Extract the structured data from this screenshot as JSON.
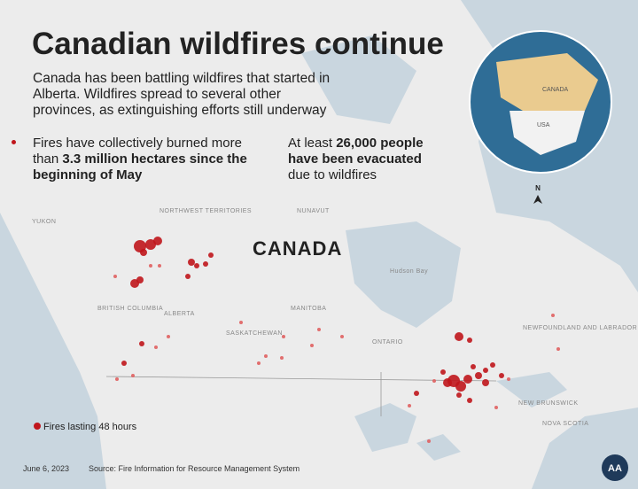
{
  "header": {
    "title": "Canadian wildfires continue",
    "subtitle": "Canada has been battling wildfires that started in Alberta. Wildfires spread to several other provinces, as extinguishing efforts still underway"
  },
  "facts": [
    {
      "parts": [
        "Fires have collectively burned more than ",
        "3.3 million hectares since the beginning of May"
      ]
    },
    {
      "parts": [
        "At least ",
        "26,000 people have been evacuated",
        " due to wildfires"
      ]
    }
  ],
  "map": {
    "country_label": "CANADA",
    "regions": [
      "YUKON",
      "NORTHWEST TERRITORIES",
      "NUNAVUT",
      "BRITISH COLUMBIA",
      "ALBERTA",
      "SASKATCHEWAN",
      "MANITOBA",
      "ONTARIO",
      "Hudson Bay",
      "NEWFOUNDLAND AND LABRADOR",
      "NEW BRUNSWICK",
      "NOVA SCOTIA"
    ],
    "compass": "N",
    "legend": "Fires lasting 48 hours"
  },
  "globe": {
    "labels": [
      "CANADA",
      "USA"
    ]
  },
  "footer": {
    "date": "June 6, 2023",
    "source": "Source: Fire Information for Resource Management System",
    "logo": "AA"
  }
}
